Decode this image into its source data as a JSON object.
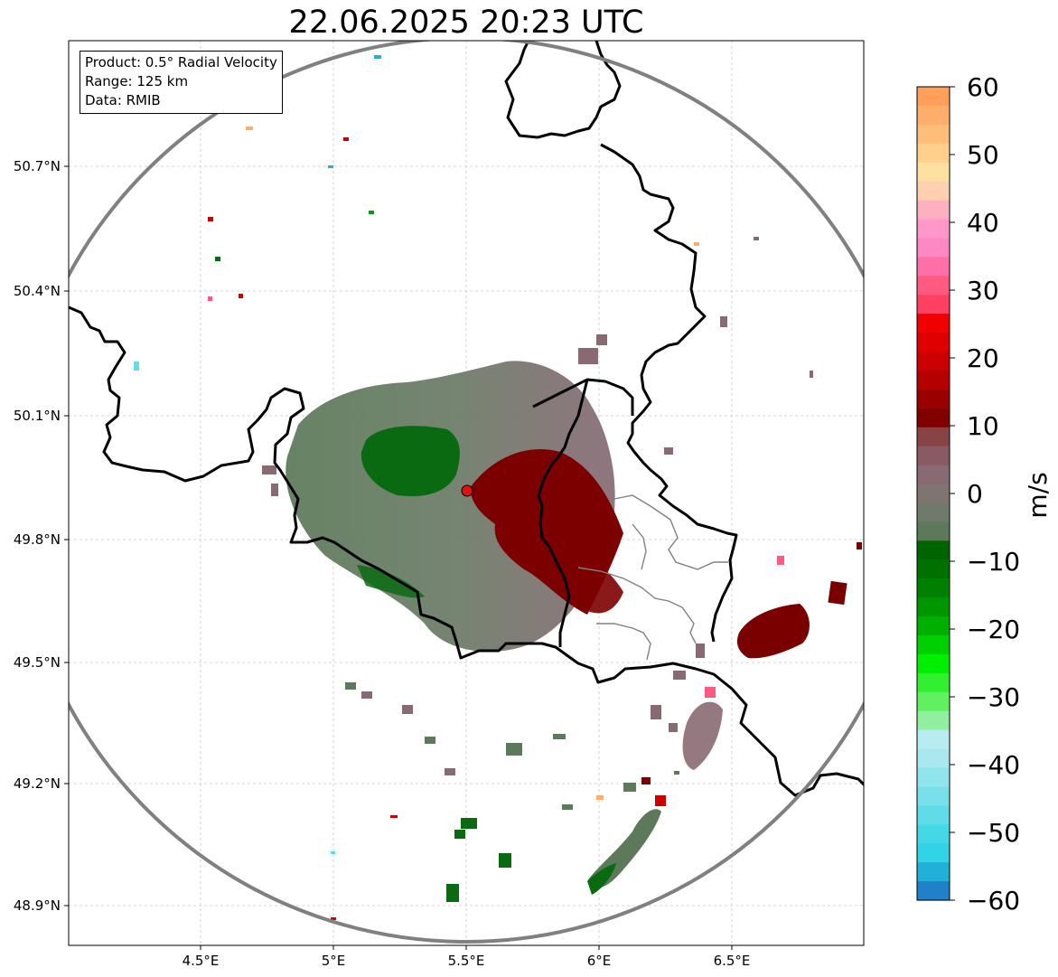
{
  "title": "22.06.2025 20:23 UTC",
  "info_box": {
    "product": "Product: 0.5° Radial Velocity",
    "range": "Range: 125 km",
    "source": "Data: RMIB"
  },
  "axes": {
    "x_ticks": [
      "4.5°E",
      "5°E",
      "5.5°E",
      "6°E",
      "6.5°E"
    ],
    "y_ticks": [
      "50.7°N",
      "50.4°N",
      "50.1°N",
      "49.8°N",
      "49.5°N",
      "49.2°N",
      "48.9°N"
    ],
    "grid": true
  },
  "radar_site_color": "#dd1111",
  "range_ring_color": "#808080",
  "colorbar": {
    "label": "m/s",
    "ticks": [
      "60",
      "50",
      "40",
      "30",
      "20",
      "10",
      "0",
      "−10",
      "−20",
      "−30",
      "−40",
      "−50",
      "−60"
    ],
    "min": -60,
    "max": 60,
    "colors_top_to_bottom": [
      "#ff9f5a",
      "#ffad6a",
      "#ffbd7a",
      "#ffcf8c",
      "#ffe0a0",
      "#ffd0b0",
      "#ffb0c0",
      "#ff98c8",
      "#ff88c4",
      "#ff70a8",
      "#ff5a80",
      "#ff4060",
      "#f00000",
      "#e00000",
      "#cc0000",
      "#b40000",
      "#9a0000",
      "#800000",
      "#884444",
      "#8a5a64",
      "#886a74",
      "#807472",
      "#707a6c",
      "#5c7a5a",
      "#006400",
      "#007000",
      "#008000",
      "#009600",
      "#00b000",
      "#00d000",
      "#00ee00",
      "#30f030",
      "#60f060",
      "#90f0a0",
      "#b8ecf0",
      "#a8e8ee",
      "#90e4ec",
      "#78e0ea",
      "#60dce8",
      "#44d8e6",
      "#30d4e4",
      "#20b0d8",
      "#2080c8"
    ]
  }
}
